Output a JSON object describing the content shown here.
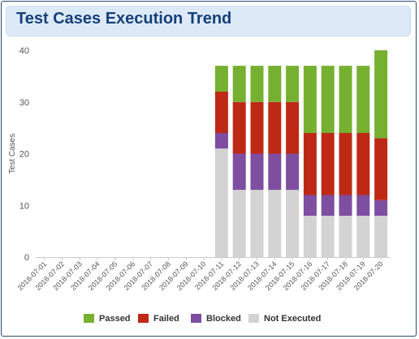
{
  "panel": {
    "title": "Test Cases Execution Trend"
  },
  "colors": {
    "axis": "#cccccc",
    "text": "#555555"
  },
  "chart_data": {
    "type": "bar",
    "stacked": true,
    "ylabel": "Test Cases",
    "ylim": [
      0,
      40
    ],
    "yticks": [
      0,
      10,
      20,
      30,
      40
    ],
    "grid": false,
    "legend_position": "bottom",
    "categories": [
      "2018-07-01",
      "2018-07-02",
      "2018-07-03",
      "2018-07-04",
      "2018-07-05",
      "2018-07-06",
      "2018-07-07",
      "2018-07-08",
      "2018-07-09",
      "2018-07-10",
      "2018-07-11",
      "2018-07-12",
      "2018-07-13",
      "2018-07-14",
      "2018-07-15",
      "2018-07-16",
      "2018-07-17",
      "2018-07-18",
      "2018-07-19",
      "2018-07-20"
    ],
    "series": [
      {
        "name": "Not Executed",
        "color": "#d3d3d3",
        "values": [
          0,
          0,
          0,
          0,
          0,
          0,
          0,
          0,
          0,
          0,
          21,
          13,
          13,
          13,
          13,
          8,
          8,
          8,
          8,
          8
        ]
      },
      {
        "name": "Blocked",
        "color": "#7e4ea1",
        "values": [
          0,
          0,
          0,
          0,
          0,
          0,
          0,
          0,
          0,
          0,
          3,
          7,
          7,
          7,
          7,
          4,
          4,
          4,
          4,
          3
        ]
      },
      {
        "name": "Failed",
        "color": "#be2916",
        "values": [
          0,
          0,
          0,
          0,
          0,
          0,
          0,
          0,
          0,
          0,
          8,
          10,
          10,
          10,
          10,
          12,
          12,
          12,
          12,
          12
        ]
      },
      {
        "name": "Passed",
        "color": "#76b031",
        "values": [
          0,
          0,
          0,
          0,
          0,
          0,
          0,
          0,
          0,
          0,
          5,
          7,
          7,
          7,
          7,
          13,
          13,
          13,
          13,
          17
        ]
      }
    ],
    "legend_order": [
      "Passed",
      "Failed",
      "Blocked",
      "Not Executed"
    ]
  }
}
